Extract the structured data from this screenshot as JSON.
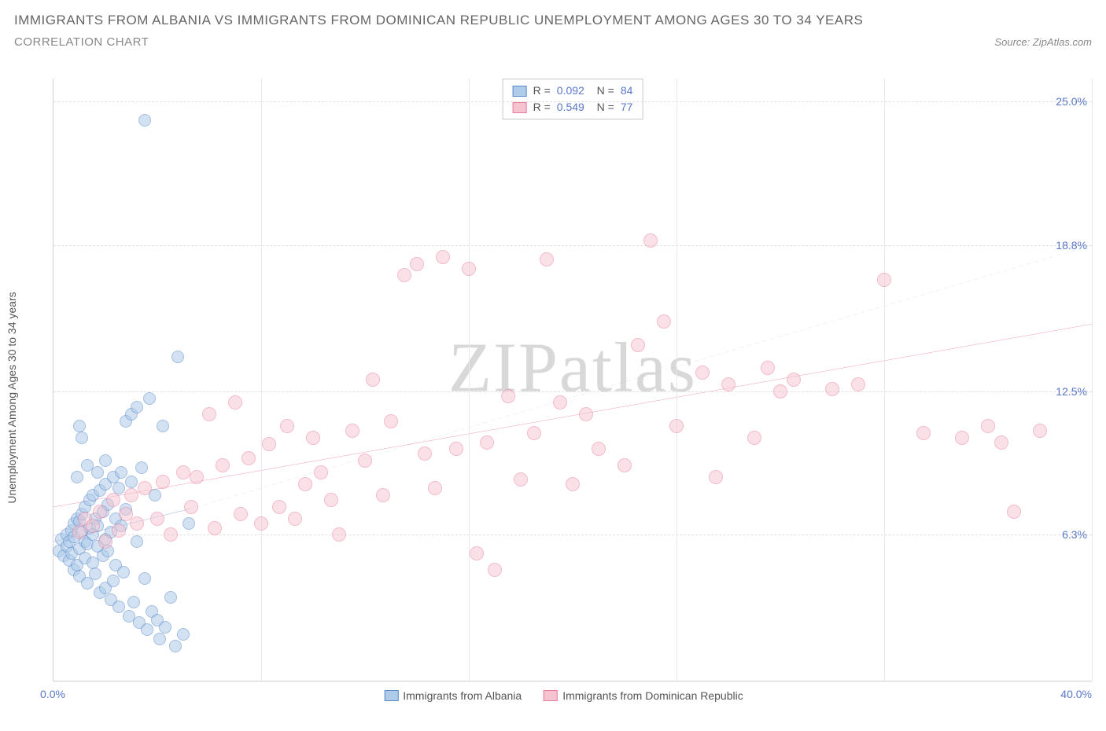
{
  "header": {
    "title": "IMMIGRANTS FROM ALBANIA VS IMMIGRANTS FROM DOMINICAN REPUBLIC UNEMPLOYMENT AMONG AGES 30 TO 34 YEARS",
    "subtitle": "CORRELATION CHART",
    "source": "Source: ZipAtlas.com"
  },
  "chart": {
    "type": "scatter",
    "ylabel": "Unemployment Among Ages 30 to 34 years",
    "xlim": [
      0,
      40
    ],
    "ylim": [
      0,
      26
    ],
    "xtick_left": {
      "pos": 0,
      "label": "0.0%"
    },
    "xtick_right": {
      "pos": 40,
      "label": "40.0%"
    },
    "yticks": [
      {
        "pos": 6.3,
        "label": "6.3%"
      },
      {
        "pos": 12.5,
        "label": "12.5%"
      },
      {
        "pos": 18.8,
        "label": "18.8%"
      },
      {
        "pos": 25.0,
        "label": "25.0%"
      }
    ],
    "x_gridlines": [
      8,
      16,
      24,
      32,
      40
    ],
    "background_color": "#ffffff",
    "grid_color": "#e0e0e0",
    "watermark": {
      "prefix": "ZIP",
      "suffix": "atlas"
    },
    "series": [
      {
        "name": "Immigrants from Albania",
        "fill": "#aecbea",
        "stroke": "#5a8ac8",
        "fill_opacity": 0.55,
        "marker_radius": 8,
        "R": "0.092",
        "N": "84",
        "regression": {
          "x1": 0,
          "y1": 6.0,
          "x2": 5.2,
          "y2": 7.4,
          "color": "#2e5aa8",
          "dash": false,
          "width": 2
        },
        "extrapolation": {
          "x1": 5.2,
          "y1": 7.4,
          "x2": 40,
          "y2": 18.8,
          "color": "#6a8fd0",
          "dash": true,
          "width": 1
        },
        "points": [
          [
            0.2,
            5.6
          ],
          [
            0.3,
            6.1
          ],
          [
            0.4,
            5.4
          ],
          [
            0.5,
            6.3
          ],
          [
            0.5,
            5.8
          ],
          [
            0.6,
            6.0
          ],
          [
            0.6,
            5.2
          ],
          [
            0.7,
            6.5
          ],
          [
            0.7,
            5.5
          ],
          [
            0.8,
            6.8
          ],
          [
            0.8,
            4.8
          ],
          [
            0.8,
            6.2
          ],
          [
            0.9,
            5.0
          ],
          [
            0.9,
            7.0
          ],
          [
            1.0,
            5.7
          ],
          [
            1.0,
            6.9
          ],
          [
            1.0,
            4.5
          ],
          [
            1.1,
            6.4
          ],
          [
            1.1,
            7.2
          ],
          [
            1.2,
            5.3
          ],
          [
            1.2,
            6.0
          ],
          [
            1.2,
            7.5
          ],
          [
            1.3,
            5.9
          ],
          [
            1.3,
            4.2
          ],
          [
            1.4,
            6.6
          ],
          [
            1.4,
            7.8
          ],
          [
            1.5,
            5.1
          ],
          [
            1.5,
            6.3
          ],
          [
            1.5,
            8.0
          ],
          [
            1.6,
            4.6
          ],
          [
            1.6,
            7.0
          ],
          [
            1.7,
            5.8
          ],
          [
            1.7,
            6.7
          ],
          [
            1.8,
            3.8
          ],
          [
            1.8,
            8.2
          ],
          [
            1.9,
            5.4
          ],
          [
            1.9,
            7.3
          ],
          [
            2.0,
            4.0
          ],
          [
            2.0,
            6.1
          ],
          [
            2.0,
            8.5
          ],
          [
            2.1,
            5.6
          ],
          [
            2.1,
            7.6
          ],
          [
            2.2,
            3.5
          ],
          [
            2.2,
            6.4
          ],
          [
            2.3,
            8.8
          ],
          [
            2.3,
            4.3
          ],
          [
            2.4,
            7.0
          ],
          [
            2.4,
            5.0
          ],
          [
            2.5,
            8.3
          ],
          [
            2.5,
            3.2
          ],
          [
            2.6,
            6.7
          ],
          [
            2.6,
            9.0
          ],
          [
            2.7,
            4.7
          ],
          [
            2.8,
            7.4
          ],
          [
            2.8,
            11.2
          ],
          [
            2.9,
            2.8
          ],
          [
            3.0,
            8.6
          ],
          [
            3.0,
            11.5
          ],
          [
            3.1,
            3.4
          ],
          [
            3.2,
            6.0
          ],
          [
            3.2,
            11.8
          ],
          [
            3.3,
            2.5
          ],
          [
            3.4,
            9.2
          ],
          [
            3.5,
            4.4
          ],
          [
            3.6,
            2.2
          ],
          [
            3.7,
            12.2
          ],
          [
            3.8,
            3.0
          ],
          [
            3.9,
            8.0
          ],
          [
            4.0,
            2.6
          ],
          [
            4.1,
            1.8
          ],
          [
            4.2,
            11.0
          ],
          [
            4.3,
            2.3
          ],
          [
            4.5,
            3.6
          ],
          [
            4.7,
            1.5
          ],
          [
            4.8,
            14.0
          ],
          [
            5.0,
            2.0
          ],
          [
            5.2,
            6.8
          ],
          [
            3.5,
            24.2
          ],
          [
            1.0,
            11.0
          ],
          [
            1.1,
            10.5
          ],
          [
            0.9,
            8.8
          ],
          [
            1.3,
            9.3
          ],
          [
            1.7,
            9.0
          ],
          [
            2.0,
            9.5
          ]
        ]
      },
      {
        "name": "Immigrants from Dominican Republic",
        "fill": "#f5c4d0",
        "stroke": "#e87a9a",
        "fill_opacity": 0.5,
        "marker_radius": 9,
        "R": "0.549",
        "N": "77",
        "regression": {
          "x1": 0,
          "y1": 7.5,
          "x2": 40,
          "y2": 15.4,
          "color": "#e85a8a",
          "dash": false,
          "width": 2.5
        },
        "points": [
          [
            1.0,
            6.4
          ],
          [
            1.2,
            7.0
          ],
          [
            1.5,
            6.7
          ],
          [
            1.8,
            7.3
          ],
          [
            2.0,
            6.0
          ],
          [
            2.3,
            7.8
          ],
          [
            2.5,
            6.5
          ],
          [
            2.8,
            7.2
          ],
          [
            3.0,
            8.0
          ],
          [
            3.2,
            6.8
          ],
          [
            3.5,
            8.3
          ],
          [
            4.0,
            7.0
          ],
          [
            4.2,
            8.6
          ],
          [
            4.5,
            6.3
          ],
          [
            5.0,
            9.0
          ],
          [
            5.3,
            7.5
          ],
          [
            5.5,
            8.8
          ],
          [
            6.0,
            11.5
          ],
          [
            6.2,
            6.6
          ],
          [
            6.5,
            9.3
          ],
          [
            7.0,
            12.0
          ],
          [
            7.2,
            7.2
          ],
          [
            7.5,
            9.6
          ],
          [
            8.0,
            6.8
          ],
          [
            8.3,
            10.2
          ],
          [
            8.7,
            7.5
          ],
          [
            9.0,
            11.0
          ],
          [
            9.3,
            7.0
          ],
          [
            9.7,
            8.5
          ],
          [
            10.0,
            10.5
          ],
          [
            10.3,
            9.0
          ],
          [
            10.7,
            7.8
          ],
          [
            11.0,
            6.3
          ],
          [
            11.5,
            10.8
          ],
          [
            12.0,
            9.5
          ],
          [
            12.3,
            13.0
          ],
          [
            12.7,
            8.0
          ],
          [
            13.0,
            11.2
          ],
          [
            13.5,
            17.5
          ],
          [
            14.0,
            18.0
          ],
          [
            14.3,
            9.8
          ],
          [
            14.7,
            8.3
          ],
          [
            15.0,
            18.3
          ],
          [
            15.5,
            10.0
          ],
          [
            16.0,
            17.8
          ],
          [
            16.3,
            5.5
          ],
          [
            16.7,
            10.3
          ],
          [
            17.0,
            4.8
          ],
          [
            17.5,
            12.3
          ],
          [
            18.0,
            8.7
          ],
          [
            18.5,
            10.7
          ],
          [
            19.0,
            18.2
          ],
          [
            19.5,
            12.0
          ],
          [
            20.0,
            8.5
          ],
          [
            20.5,
            11.5
          ],
          [
            21.0,
            10.0
          ],
          [
            22.0,
            9.3
          ],
          [
            22.5,
            14.5
          ],
          [
            23.0,
            19.0
          ],
          [
            23.5,
            15.5
          ],
          [
            24.0,
            11.0
          ],
          [
            25.0,
            13.3
          ],
          [
            25.5,
            8.8
          ],
          [
            26.0,
            12.8
          ],
          [
            27.0,
            10.5
          ],
          [
            27.5,
            13.5
          ],
          [
            28.0,
            12.5
          ],
          [
            28.5,
            13.0
          ],
          [
            30.0,
            12.6
          ],
          [
            31.0,
            12.8
          ],
          [
            32.0,
            17.3
          ],
          [
            33.5,
            10.7
          ],
          [
            35.0,
            10.5
          ],
          [
            36.0,
            11.0
          ],
          [
            37.0,
            7.3
          ],
          [
            38.0,
            10.8
          ],
          [
            36.5,
            10.3
          ]
        ]
      }
    ],
    "bottom_legend": [
      {
        "label": "Immigrants from Albania",
        "fill": "#aecbea",
        "stroke": "#5a8ac8"
      },
      {
        "label": "Immigrants from Dominican Republic",
        "fill": "#f5c4d0",
        "stroke": "#e87a9a"
      }
    ]
  }
}
